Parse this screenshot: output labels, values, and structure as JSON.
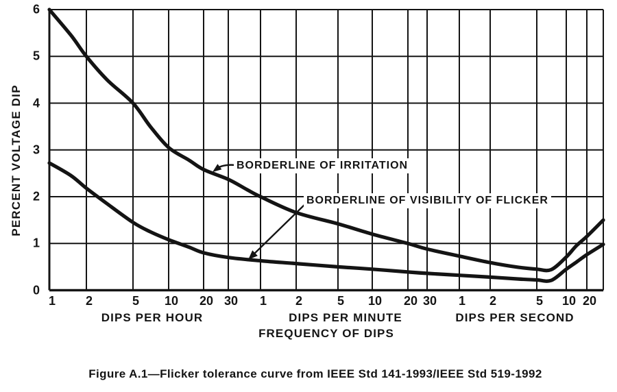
{
  "figure": {
    "caption": "Figure A.1—Flicker tolerance curve from IEEE Std 141-1993/IEEE Std 519-1992"
  },
  "chart_data": {
    "type": "line",
    "title": "",
    "ylabel": "PERCENT VOLTAGE DIP",
    "xlabel": "FREQUENCY OF DIPS",
    "grid": true,
    "legend_position": "inline-annotations",
    "y_axis": {
      "min": 0,
      "max": 6,
      "ticks": [
        0,
        1,
        2,
        3,
        4,
        5,
        6
      ],
      "unit": "percent voltage dip"
    },
    "x_axis": {
      "scale": "logarithmic frequency of dips, three concatenated unit segments",
      "segments": [
        {
          "label": "DIPS PER HOUR",
          "per_hour_multiplier": 1,
          "ticks": [
            1,
            2,
            5,
            10,
            20,
            30
          ]
        },
        {
          "label": "DIPS PER MINUTE",
          "per_hour_multiplier": 60,
          "ticks": [
            1,
            2,
            5,
            10,
            20,
            30
          ]
        },
        {
          "label": "DIPS PER SECOND",
          "per_hour_multiplier": 3600,
          "ticks": [
            1,
            2,
            5,
            10,
            20
          ]
        }
      ]
    },
    "series": [
      {
        "name": "BORDERLINE OF IRRITATION",
        "points_f_per_hour_pct": [
          [
            1,
            6.0
          ],
          [
            1.5,
            5.45
          ],
          [
            2,
            5.0
          ],
          [
            3,
            4.5
          ],
          [
            5,
            4.0
          ],
          [
            7,
            3.5
          ],
          [
            10,
            3.05
          ],
          [
            15,
            2.78
          ],
          [
            20,
            2.58
          ],
          [
            30,
            2.37
          ],
          [
            45,
            2.15
          ],
          [
            60,
            2.0
          ],
          [
            120,
            1.66
          ],
          [
            300,
            1.42
          ],
          [
            600,
            1.2
          ],
          [
            1200,
            1.0
          ],
          [
            1800,
            0.88
          ],
          [
            3600,
            0.73
          ],
          [
            7200,
            0.59
          ],
          [
            12600,
            0.49
          ],
          [
            18000,
            0.45
          ],
          [
            25200,
            0.44
          ],
          [
            36000,
            0.71
          ],
          [
            50400,
            0.95
          ],
          [
            72000,
            1.15
          ],
          [
            125000,
            1.5
          ]
        ]
      },
      {
        "name": "BORDERLINE OF VISIBILITY OF FLICKER",
        "points_f_per_hour_pct": [
          [
            1,
            2.72
          ],
          [
            1.5,
            2.45
          ],
          [
            2,
            2.18
          ],
          [
            3,
            1.85
          ],
          [
            5,
            1.45
          ],
          [
            7,
            1.25
          ],
          [
            10,
            1.08
          ],
          [
            15,
            0.92
          ],
          [
            20,
            0.8
          ],
          [
            30,
            0.7
          ],
          [
            60,
            0.63
          ],
          [
            120,
            0.57
          ],
          [
            300,
            0.5
          ],
          [
            600,
            0.45
          ],
          [
            1200,
            0.39
          ],
          [
            1800,
            0.36
          ],
          [
            3600,
            0.32
          ],
          [
            7200,
            0.28
          ],
          [
            12600,
            0.24
          ],
          [
            18000,
            0.22
          ],
          [
            25200,
            0.21
          ],
          [
            36000,
            0.45
          ],
          [
            50400,
            0.6
          ],
          [
            72000,
            0.76
          ],
          [
            125000,
            0.98
          ]
        ]
      }
    ],
    "annotations": [
      {
        "text": "BORDERLINE OF IRRITATION"
      },
      {
        "text": "BORDERLINE OF VISIBILITY OF FLICKER"
      }
    ]
  }
}
